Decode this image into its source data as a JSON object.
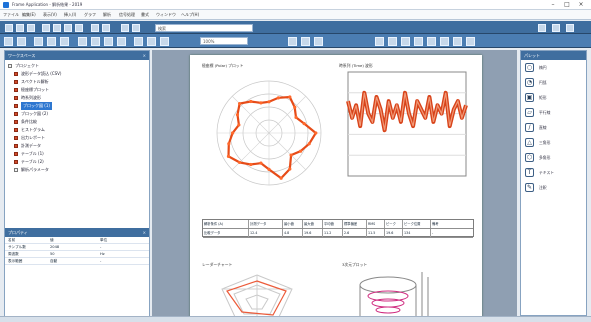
{
  "window": {
    "title": "Frame Application - 解析結果 - 2019"
  },
  "menus": [
    "ファイル",
    "編集(E)",
    "表示(V)",
    "挿入(I)",
    "グラフ",
    "解析",
    "信号処理",
    "書式",
    "ウィンドウ",
    "ヘルプ(H)"
  ],
  "toolbar": {
    "search_placeholder": "検索",
    "zoom": "100%"
  },
  "left": {
    "tree_title": "ワークスペース",
    "items": [
      "プロジェクト",
      "波形データ読込 (CSV)",
      "スペクトル解析",
      "極座標プロット",
      "時系列波形",
      "ブロック図 (1)",
      "ブロック図 (2)",
      "条件比較",
      "ヒストグラム",
      "出力レポート",
      "計測データ",
      "テーブル (1)",
      "テーブル (2)",
      "解析パラメータ"
    ],
    "properties_title": "プロパティ",
    "properties": [
      [
        "名前",
        "値",
        "単位"
      ],
      [
        "サンプル数",
        "2048",
        "-"
      ],
      [
        "周波数",
        "50",
        "Hz"
      ],
      [
        "表示範囲",
        "自動",
        "-"
      ]
    ]
  },
  "report": {
    "charts": {
      "polar_title": "極座標 (Polar) プロット",
      "line_title": "時系列 (Time) 波形"
    },
    "table": {
      "headers": [
        "解析条件 (A)",
        "計測データ",
        "最小値",
        "最大値",
        "平均値",
        "標準偏差",
        "RMS",
        "ピーク",
        "ピーク位置",
        "備考"
      ],
      "rows": [
        [
          "比較データ",
          "12.4",
          "4.8",
          "19.6",
          "11.2",
          "2.6",
          "11.5",
          "19.6",
          "134",
          "-"
        ]
      ]
    },
    "lower_left_title": "レーダーチャート",
    "lower_right_title": "3次元プロット"
  },
  "right": {
    "title": "パレット",
    "items": [
      "楕円",
      "円弧",
      "矩形",
      "平行線",
      "直線",
      "三角形",
      "多角形",
      "テキスト",
      "注釈"
    ]
  },
  "chart_data": {
    "polar": {
      "type": "scatter",
      "r": [
        6,
        7,
        8,
        7,
        6,
        7,
        9,
        8,
        7,
        6,
        8,
        9,
        7,
        6,
        7,
        8,
        9,
        8,
        7,
        6,
        7,
        8,
        7,
        6
      ],
      "rmax": 10
    },
    "line": {
      "type": "line",
      "x": [
        1,
        2,
        3,
        4,
        5,
        6,
        7,
        8,
        9,
        10,
        11,
        12,
        13,
        14,
        15,
        16,
        17,
        18,
        19,
        20,
        21,
        22,
        23,
        24,
        25,
        26,
        27,
        28,
        29,
        30
      ],
      "y": [
        18,
        14,
        17,
        12,
        20,
        15,
        13,
        19,
        16,
        11,
        18,
        14,
        17,
        13,
        20,
        15,
        12,
        18,
        16,
        14,
        19,
        13,
        17,
        15,
        20,
        12,
        16,
        18,
        14,
        17
      ],
      "ylim": [
        0,
        25
      ]
    }
  }
}
